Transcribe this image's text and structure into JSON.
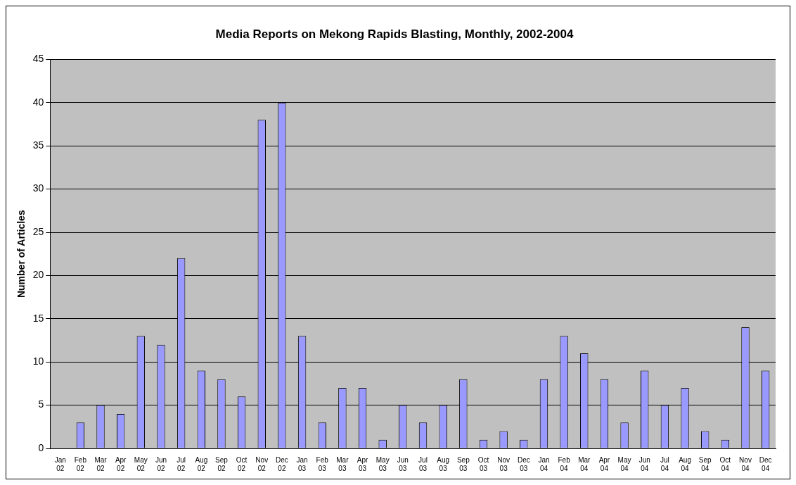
{
  "chart_data": {
    "type": "bar",
    "title": "Media Reports on Mekong Rapids Blasting, Monthly, 2002-2004",
    "ylabel": "Number of Articles",
    "categories": [
      "Jan 02",
      "Feb 02",
      "Mar 02",
      "Apr 02",
      "May 02",
      "Jun 02",
      "Jul 02",
      "Aug 02",
      "Sep 02",
      "Oct 02",
      "Nov 02",
      "Dec 02",
      "Jan 03",
      "Feb 03",
      "Mar 03",
      "Apr 03",
      "May 03",
      "Jun 03",
      "Jul 03",
      "Aug 03",
      "Sep 03",
      "Oct 03",
      "Nov 03",
      "Dec 03",
      "Jan 04",
      "Feb 04",
      "Mar 04",
      "Apr 04",
      "May 04",
      "Jun 04",
      "Jul 04",
      "Aug 04",
      "Sep 04",
      "Oct 04",
      "Nov 04",
      "Dec 04"
    ],
    "values": [
      0,
      3,
      5,
      4,
      13,
      12,
      22,
      9,
      8,
      6,
      38,
      40,
      13,
      3,
      7,
      7,
      1,
      5,
      3,
      5,
      8,
      1,
      2,
      1,
      8,
      13,
      11,
      8,
      3,
      9,
      5,
      7,
      2,
      1,
      14,
      9
    ],
    "color": "#9999ff",
    "ylim": [
      0,
      45
    ],
    "yticks": [
      0,
      5,
      10,
      15,
      20,
      25,
      30,
      35,
      40,
      45
    ],
    "grid": "y"
  }
}
